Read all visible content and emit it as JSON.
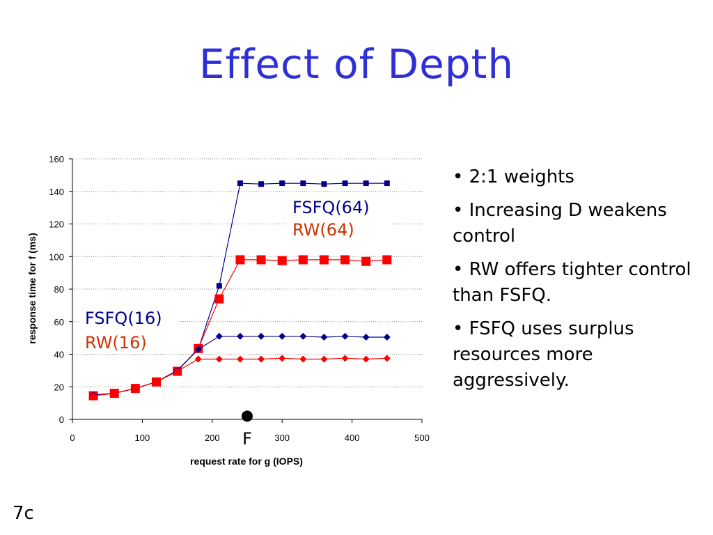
{
  "slide": {
    "title": "Effect of Depth",
    "bullets": [
      "•  2:1 weights",
      "•  Increasing D weakens control",
      "• RW offers tighter control than FSFQ.",
      "• FSFQ uses surplus resources more aggressively."
    ],
    "slide_number": "7c"
  },
  "colors": {
    "title": "#2f2fd6",
    "fsfq": "#00008b",
    "rw": "#ff0000",
    "rw_label": "#cc3300"
  },
  "chart_data": {
    "type": "line",
    "xlabel": "request rate for g (IOPS)",
    "ylabel": "response time for f (ms)",
    "xlim": [
      0,
      500
    ],
    "ylim": [
      0,
      160
    ],
    "xticks": [
      0,
      100,
      200,
      300,
      400,
      500
    ],
    "yticks": [
      0,
      20,
      40,
      60,
      80,
      100,
      120,
      140,
      160
    ],
    "grid": "horizontal dotted",
    "x": [
      30,
      60,
      90,
      120,
      150,
      180,
      210,
      240,
      270,
      300,
      330,
      360,
      390,
      420,
      450
    ],
    "series": [
      {
        "name": "FSFQ(64)",
        "marker": "square",
        "color": "#00008b",
        "values": [
          15,
          16,
          19,
          23,
          30,
          43,
          82,
          145,
          144.5,
          145,
          145,
          144.5,
          145,
          145,
          145
        ]
      },
      {
        "name": "RW(64)",
        "marker": "square-large",
        "color": "#ff0000",
        "values": [
          14.5,
          16,
          19,
          23,
          29.5,
          43.5,
          74,
          98,
          98,
          97.5,
          98,
          98,
          98,
          97,
          98
        ]
      },
      {
        "name": "FSFQ(16)",
        "marker": "diamond",
        "color": "#00008b",
        "values": [
          15,
          16,
          19,
          23,
          30,
          43,
          51,
          51,
          51,
          51,
          51,
          50.5,
          51,
          50.5,
          50.5
        ]
      },
      {
        "name": "RW(16)",
        "marker": "diamond",
        "color": "#ff0000",
        "values": [
          14.5,
          16,
          19,
          23,
          29.5,
          37,
          37,
          37,
          37,
          37.5,
          37,
          37,
          37.5,
          37,
          37.5
        ]
      }
    ],
    "marker_point": {
      "label": "F",
      "x": 250,
      "y": 2
    },
    "annotations": [
      {
        "text": "FSFQ(64)",
        "color": "#00008b"
      },
      {
        "text": "RW(64)",
        "color": "#cc3300"
      },
      {
        "text": "FSFQ(16)",
        "color": "#00008b"
      },
      {
        "text": "RW(16)",
        "color": "#cc3300"
      }
    ]
  }
}
